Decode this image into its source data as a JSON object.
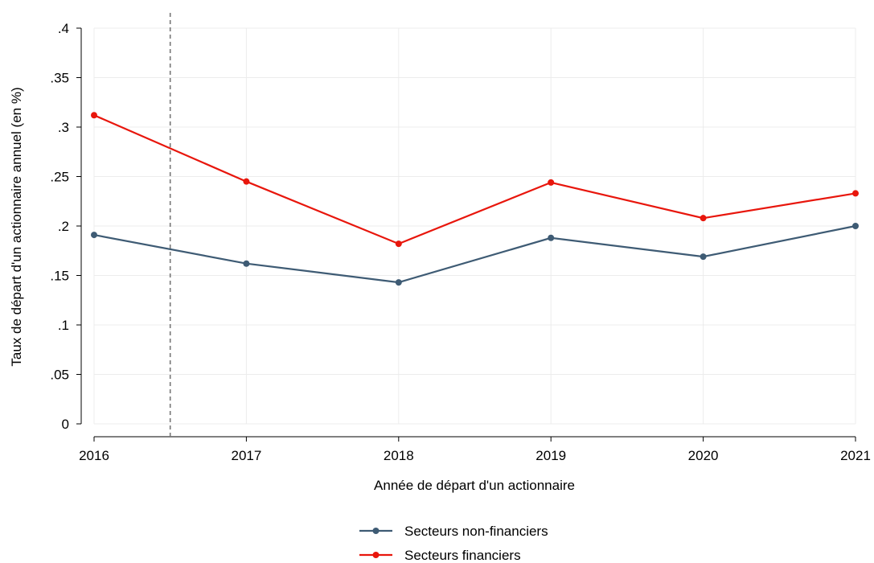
{
  "chart_data": {
    "type": "line",
    "title": "",
    "xlabel": "Année de départ d'un actionnaire",
    "ylabel": "Taux de départ d'un actionnaire annuel (en %)",
    "x": [
      2016,
      2017,
      2018,
      2019,
      2020,
      2021
    ],
    "x_tick_labels": [
      "2016",
      "2017",
      "2018",
      "2019",
      "2020",
      "2021"
    ],
    "xlim": [
      2016,
      2021
    ],
    "ylim": [
      0,
      0.4
    ],
    "y_ticks": [
      0,
      0.05,
      0.1,
      0.15,
      0.2,
      0.25,
      0.3,
      0.35,
      0.4
    ],
    "y_tick_labels": [
      "0",
      ".05",
      ".1",
      ".15",
      ".2",
      ".25",
      ".3",
      ".35",
      ".4"
    ],
    "grid": true,
    "vertical_reference_line": {
      "x": 2016.5,
      "style": "dashed",
      "color": "#777777"
    },
    "legend_position": "bottom-center",
    "series": [
      {
        "name": "Secteurs non-financiers",
        "color": "#3e5b74",
        "values": [
          0.191,
          0.162,
          0.143,
          0.188,
          0.169,
          0.2
        ]
      },
      {
        "name": "Secteurs financiers",
        "color": "#e8160c",
        "values": [
          0.312,
          0.245,
          0.182,
          0.244,
          0.208,
          0.233
        ]
      }
    ]
  }
}
